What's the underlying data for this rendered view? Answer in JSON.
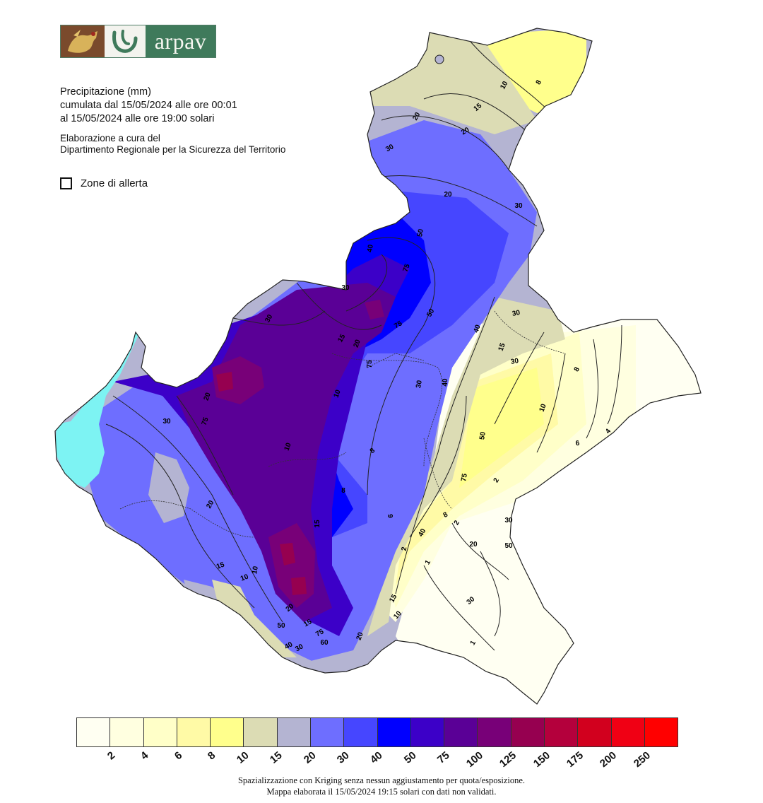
{
  "logo": {
    "brand_text": "arpav",
    "icon_seal": "lion-seal-icon",
    "icon_mark": "arpav-mark-icon"
  },
  "info": {
    "title": "Precipitazione (mm)",
    "period_line1": "cumulata dal 15/05/2024 alle ore 00:01",
    "period_line2": "al 15/05/2024 alle ore 19:00 solari",
    "credit_line1": "Elaborazione a cura del",
    "credit_line2": "Dipartimento Regionale per la Sicurezza del Territorio"
  },
  "zones_legend": {
    "label": "Zone di allerta"
  },
  "color_scale": {
    "colors": [
      "#fffff2",
      "#ffffe0",
      "#ffffc8",
      "#fffaa6",
      "#ffff8c",
      "#dcdcb4",
      "#b4b4d2",
      "#6e6eff",
      "#4646ff",
      "#0000ff",
      "#3c00c8",
      "#5a0096",
      "#780078",
      "#960050",
      "#b4003c",
      "#d2001e",
      "#f00014",
      "#ff0000"
    ],
    "ticks": [
      "2",
      "4",
      "6",
      "8",
      "10",
      "15",
      "20",
      "30",
      "40",
      "50",
      "75",
      "100",
      "125",
      "150",
      "175",
      "200",
      "250"
    ]
  },
  "map_labels": {
    "contours": [
      "10",
      "8",
      "15",
      "20",
      "20",
      "30",
      "20",
      "30",
      "50",
      "40",
      "75",
      "30",
      "30",
      "15",
      "20",
      "75",
      "75",
      "50",
      "40",
      "15",
      "30",
      "20",
      "75",
      "10",
      "8",
      "8",
      "6",
      "8",
      "10",
      "30",
      "40",
      "50",
      "75",
      "30",
      "10",
      "8",
      "6",
      "4",
      "2",
      "2",
      "1",
      "20",
      "30",
      "30",
      "50",
      "40",
      "30",
      "20",
      "15",
      "10",
      "15",
      "10",
      "20",
      "15",
      "75",
      "60",
      "50",
      "40",
      "30",
      "20",
      "15",
      "10",
      "2",
      "1"
    ]
  },
  "footer": {
    "line1": "Spazializzazione con Kriging senza nessun aggiustamento per quota/esposizione.",
    "line2": "Mappa elaborata il 15/05/2024 19:15 solari con dati non validati."
  }
}
